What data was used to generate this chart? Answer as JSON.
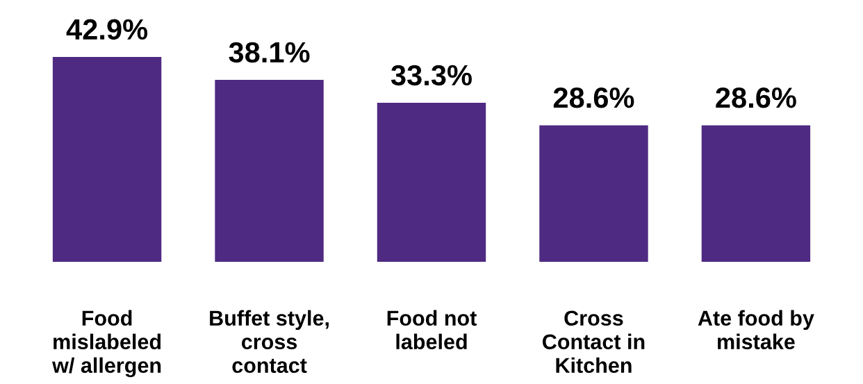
{
  "chart_data": {
    "type": "bar",
    "categories": [
      "Food\nmislabeled\nw/ allergen",
      "Buffet style,\ncross\ncontact",
      "Food not\nlabeled",
      "Cross\nContact in\nKitchen",
      "Ate food by\nmistake"
    ],
    "values": [
      42.9,
      38.1,
      33.3,
      28.6,
      28.6
    ],
    "value_labels": [
      "42.9%",
      "38.1%",
      "33.3%",
      "28.6%",
      "28.6%"
    ],
    "color": "#4f2a82",
    "grid": false,
    "legend": false
  }
}
